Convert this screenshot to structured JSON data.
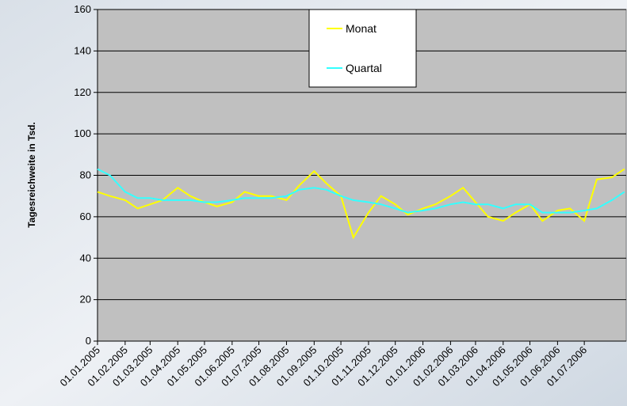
{
  "chart_data": {
    "type": "line",
    "ylabel": "Tagesreichweite in Tsd.",
    "x": [
      "01.01.2005",
      "15.01.2005",
      "01.02.2005",
      "15.02.2005",
      "01.03.2005",
      "15.03.2005",
      "01.04.2005",
      "15.04.2005",
      "01.05.2005",
      "15.05.2005",
      "01.06.2005",
      "15.06.2005",
      "01.07.2005",
      "15.07.2005",
      "01.08.2005",
      "15.08.2005",
      "01.09.2005",
      "15.09.2005",
      "01.10.2005",
      "15.10.2005",
      "01.11.2005",
      "15.11.2005",
      "01.12.2005",
      "15.12.2005",
      "01.01.2006",
      "15.01.2006",
      "01.02.2006",
      "15.02.2006",
      "01.03.2006",
      "15.03.2006",
      "01.04.2006",
      "15.04.2006",
      "01.05.2006",
      "15.05.2006",
      "01.06.2006",
      "15.06.2006",
      "01.07.2006",
      "15.07.2006",
      "01.08.2006",
      "15.08.2006"
    ],
    "series": [
      {
        "name": "Monat",
        "color": "#ffff00",
        "values": [
          72,
          70,
          68,
          64,
          66,
          68,
          74,
          70,
          67,
          65,
          67,
          72,
          70,
          70,
          68,
          75,
          82,
          76,
          70,
          50,
          62,
          70,
          66,
          61,
          64,
          66,
          70,
          74,
          67,
          60,
          58,
          62,
          66,
          58,
          63,
          64,
          58,
          78,
          79,
          83
        ]
      },
      {
        "name": "Quartal",
        "color": "#33ffff",
        "values": [
          83,
          80,
          72,
          69,
          69,
          68,
          68,
          68,
          67,
          67,
          68,
          69,
          69,
          69,
          70,
          73,
          74,
          73,
          70,
          68,
          67,
          66,
          64,
          62,
          63,
          64,
          66,
          67,
          66,
          66,
          64,
          66,
          66,
          62,
          62,
          62,
          63,
          64,
          68,
          72
        ]
      }
    ],
    "xlim": [
      "01.01.2005",
      "17.08.2006"
    ],
    "xticks": [
      "01.01.2005",
      "01.02.2005",
      "01.03.2005",
      "01.04.2005",
      "01.05.2005",
      "01.06.2005",
      "01.07.2005",
      "01.08.2005",
      "01.09.2005",
      "01.10.2005",
      "01.11.2005",
      "01.12.2005",
      "01.01.2006",
      "01.02.2006",
      "01.03.2006",
      "01.04.2006",
      "01.05.2006",
      "01.06.2006",
      "01.07.2006"
    ],
    "ylim": [
      0,
      160
    ],
    "yticks": [
      0,
      20,
      40,
      60,
      80,
      100,
      120,
      140,
      160
    ],
    "grid": true,
    "legend": "top"
  }
}
